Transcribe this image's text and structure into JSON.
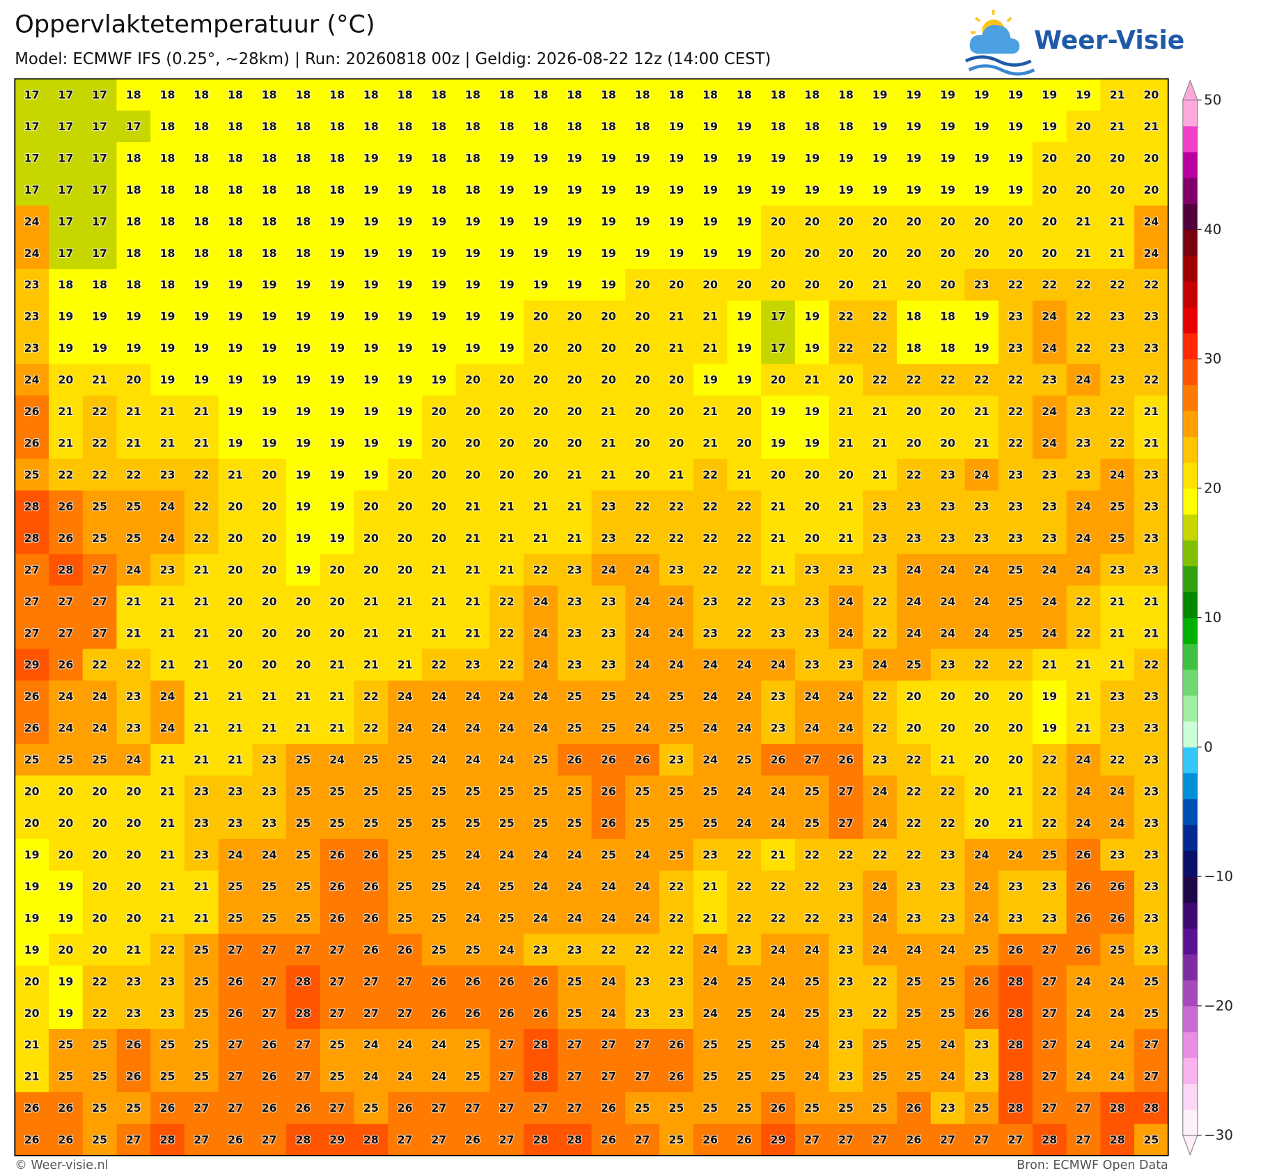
{
  "header": {
    "title": "Oppervlaktetemperatuur (°C)",
    "subtitle": "Model: ECMWF IFS (0.25°, ~28km) | Run: 20260818 00z | Geldig: 2026-08-22 12z (14:00 CEST)",
    "logo": "Weer-Visie"
  },
  "map": {
    "rows": [
      [
        17,
        17,
        17,
        18,
        18,
        18,
        18,
        18,
        18,
        18,
        18,
        18,
        18,
        18,
        18,
        18,
        18,
        18,
        18,
        18,
        18,
        18,
        18,
        18,
        18,
        19,
        19,
        19,
        19,
        19,
        19,
        19,
        21,
        20
      ],
      [
        17,
        17,
        17,
        17,
        18,
        18,
        18,
        18,
        18,
        18,
        18,
        18,
        18,
        18,
        18,
        18,
        18,
        18,
        18,
        19,
        19,
        19,
        18,
        18,
        18,
        19,
        19,
        19,
        19,
        19,
        19,
        20,
        21,
        21
      ],
      [
        17,
        17,
        17,
        18,
        18,
        18,
        18,
        18,
        18,
        18,
        19,
        19,
        18,
        18,
        19,
        19,
        19,
        19,
        19,
        19,
        19,
        19,
        19,
        19,
        19,
        19,
        19,
        19,
        19,
        19,
        20,
        20,
        20,
        20
      ],
      [
        17,
        17,
        17,
        18,
        18,
        18,
        18,
        18,
        18,
        18,
        19,
        19,
        18,
        18,
        19,
        19,
        19,
        19,
        19,
        19,
        19,
        19,
        19,
        19,
        19,
        19,
        19,
        19,
        19,
        19,
        20,
        20,
        20,
        20
      ],
      [
        24,
        17,
        17,
        18,
        18,
        18,
        18,
        18,
        18,
        19,
        19,
        19,
        19,
        19,
        19,
        19,
        19,
        19,
        19,
        19,
        19,
        19,
        20,
        20,
        20,
        20,
        20,
        20,
        20,
        20,
        20,
        21,
        21,
        24
      ],
      [
        24,
        17,
        17,
        18,
        18,
        18,
        18,
        18,
        18,
        19,
        19,
        19,
        19,
        19,
        19,
        19,
        19,
        19,
        19,
        19,
        19,
        19,
        20,
        20,
        20,
        20,
        20,
        20,
        20,
        20,
        20,
        21,
        21,
        24
      ],
      [
        23,
        18,
        18,
        18,
        18,
        19,
        19,
        19,
        19,
        19,
        19,
        19,
        19,
        19,
        19,
        19,
        19,
        19,
        20,
        20,
        20,
        20,
        20,
        20,
        20,
        21,
        20,
        20,
        23,
        22,
        22,
        22,
        22,
        22
      ],
      [
        23,
        19,
        19,
        19,
        19,
        19,
        19,
        19,
        19,
        19,
        19,
        19,
        19,
        19,
        19,
        20,
        20,
        20,
        20,
        21,
        21,
        19,
        17,
        19,
        22,
        22,
        18,
        18,
        19,
        23,
        24,
        22,
        23,
        23
      ],
      [
        23,
        19,
        19,
        19,
        19,
        19,
        19,
        19,
        19,
        19,
        19,
        19,
        19,
        19,
        19,
        20,
        20,
        20,
        20,
        21,
        21,
        19,
        17,
        19,
        22,
        22,
        18,
        18,
        19,
        23,
        24,
        22,
        23,
        23
      ],
      [
        24,
        20,
        21,
        20,
        19,
        19,
        19,
        19,
        19,
        19,
        19,
        19,
        19,
        20,
        20,
        20,
        20,
        20,
        20,
        20,
        19,
        19,
        20,
        21,
        20,
        22,
        22,
        22,
        22,
        22,
        23,
        24,
        23,
        22
      ],
      [
        26,
        21,
        22,
        21,
        21,
        21,
        19,
        19,
        19,
        19,
        19,
        19,
        20,
        20,
        20,
        20,
        20,
        21,
        20,
        20,
        21,
        20,
        19,
        19,
        21,
        21,
        20,
        20,
        21,
        22,
        24,
        23,
        22,
        21
      ],
      [
        26,
        21,
        22,
        21,
        21,
        21,
        19,
        19,
        19,
        19,
        19,
        19,
        20,
        20,
        20,
        20,
        20,
        21,
        20,
        20,
        21,
        20,
        19,
        19,
        21,
        21,
        20,
        20,
        21,
        22,
        24,
        23,
        22,
        21
      ],
      [
        25,
        22,
        22,
        22,
        23,
        22,
        21,
        20,
        19,
        19,
        19,
        20,
        20,
        20,
        20,
        20,
        21,
        21,
        20,
        21,
        22,
        21,
        20,
        20,
        20,
        21,
        22,
        23,
        24,
        23,
        23,
        23,
        24,
        23
      ],
      [
        28,
        26,
        25,
        25,
        24,
        22,
        20,
        20,
        19,
        19,
        20,
        20,
        20,
        21,
        21,
        21,
        21,
        23,
        22,
        22,
        22,
        22,
        21,
        20,
        21,
        23,
        23,
        23,
        23,
        23,
        23,
        24,
        25,
        23
      ],
      [
        28,
        26,
        25,
        25,
        24,
        22,
        20,
        20,
        19,
        19,
        20,
        20,
        20,
        21,
        21,
        21,
        21,
        23,
        22,
        22,
        22,
        22,
        21,
        20,
        21,
        23,
        23,
        23,
        23,
        23,
        23,
        24,
        25,
        23
      ],
      [
        27,
        28,
        27,
        24,
        23,
        21,
        20,
        20,
        19,
        20,
        20,
        20,
        21,
        21,
        21,
        22,
        23,
        24,
        24,
        23,
        22,
        22,
        21,
        23,
        23,
        23,
        24,
        24,
        24,
        25,
        24,
        24,
        23,
        23
      ],
      [
        27,
        27,
        27,
        21,
        21,
        21,
        20,
        20,
        20,
        20,
        21,
        21,
        21,
        21,
        22,
        24,
        23,
        23,
        24,
        24,
        23,
        22,
        23,
        23,
        24,
        22,
        24,
        24,
        24,
        25,
        24,
        22,
        21,
        21
      ],
      [
        27,
        27,
        27,
        21,
        21,
        21,
        20,
        20,
        20,
        20,
        21,
        21,
        21,
        21,
        22,
        24,
        23,
        23,
        24,
        24,
        23,
        22,
        23,
        23,
        24,
        22,
        24,
        24,
        24,
        25,
        24,
        22,
        21,
        21
      ],
      [
        29,
        26,
        22,
        22,
        21,
        21,
        20,
        20,
        20,
        21,
        21,
        21,
        22,
        23,
        22,
        24,
        23,
        23,
        24,
        24,
        24,
        24,
        24,
        23,
        23,
        24,
        25,
        23,
        22,
        22,
        21,
        21,
        21,
        22
      ],
      [
        26,
        24,
        24,
        23,
        24,
        21,
        21,
        21,
        21,
        21,
        22,
        24,
        24,
        24,
        24,
        24,
        25,
        25,
        24,
        25,
        24,
        24,
        23,
        24,
        24,
        22,
        20,
        20,
        20,
        20,
        19,
        21,
        23,
        23
      ],
      [
        26,
        24,
        24,
        23,
        24,
        21,
        21,
        21,
        21,
        21,
        22,
        24,
        24,
        24,
        24,
        24,
        25,
        25,
        24,
        25,
        24,
        24,
        23,
        24,
        24,
        22,
        20,
        20,
        20,
        20,
        19,
        21,
        23,
        23
      ],
      [
        25,
        25,
        25,
        24,
        21,
        21,
        21,
        23,
        25,
        24,
        25,
        25,
        24,
        24,
        24,
        25,
        26,
        26,
        26,
        23,
        24,
        25,
        26,
        27,
        26,
        23,
        22,
        21,
        20,
        20,
        22,
        24,
        22,
        23
      ],
      [
        20,
        20,
        20,
        20,
        21,
        23,
        23,
        23,
        25,
        25,
        25,
        25,
        25,
        25,
        25,
        25,
        25,
        26,
        25,
        25,
        25,
        24,
        24,
        25,
        27,
        24,
        22,
        22,
        20,
        21,
        22,
        24,
        24,
        23
      ],
      [
        20,
        20,
        20,
        20,
        21,
        23,
        23,
        23,
        25,
        25,
        25,
        25,
        25,
        25,
        25,
        25,
        25,
        26,
        25,
        25,
        25,
        24,
        24,
        25,
        27,
        24,
        22,
        22,
        20,
        21,
        22,
        24,
        24,
        23
      ],
      [
        19,
        20,
        20,
        20,
        21,
        23,
        24,
        24,
        25,
        26,
        26,
        25,
        25,
        24,
        24,
        24,
        24,
        25,
        24,
        25,
        23,
        22,
        21,
        22,
        22,
        22,
        22,
        23,
        24,
        24,
        25,
        26,
        23,
        23
      ],
      [
        19,
        19,
        20,
        20,
        21,
        21,
        25,
        25,
        25,
        26,
        26,
        25,
        25,
        24,
        25,
        24,
        24,
        24,
        24,
        22,
        21,
        22,
        22,
        22,
        23,
        24,
        23,
        23,
        24,
        23,
        23,
        26,
        26,
        23
      ],
      [
        19,
        19,
        20,
        20,
        21,
        21,
        25,
        25,
        25,
        26,
        26,
        25,
        25,
        24,
        25,
        24,
        24,
        24,
        24,
        22,
        21,
        22,
        22,
        22,
        23,
        24,
        23,
        23,
        24,
        23,
        23,
        26,
        26,
        23
      ],
      [
        19,
        20,
        20,
        21,
        22,
        25,
        27,
        27,
        27,
        27,
        26,
        26,
        25,
        25,
        24,
        23,
        23,
        22,
        22,
        22,
        24,
        23,
        24,
        24,
        23,
        24,
        24,
        24,
        25,
        26,
        27,
        26,
        25,
        23
      ],
      [
        20,
        19,
        22,
        23,
        23,
        25,
        26,
        27,
        28,
        27,
        27,
        27,
        26,
        26,
        26,
        26,
        25,
        24,
        23,
        23,
        24,
        25,
        24,
        25,
        23,
        22,
        25,
        25,
        26,
        28,
        27,
        24,
        24,
        25
      ],
      [
        20,
        19,
        22,
        23,
        23,
        25,
        26,
        27,
        28,
        27,
        27,
        27,
        26,
        26,
        26,
        26,
        25,
        24,
        23,
        23,
        24,
        25,
        24,
        25,
        23,
        22,
        25,
        25,
        26,
        28,
        27,
        24,
        24,
        25
      ],
      [
        21,
        25,
        25,
        26,
        25,
        25,
        27,
        26,
        27,
        25,
        24,
        24,
        24,
        25,
        27,
        28,
        27,
        27,
        27,
        26,
        25,
        25,
        25,
        24,
        23,
        25,
        25,
        24,
        23,
        28,
        27,
        24,
        24,
        27
      ],
      [
        21,
        25,
        25,
        26,
        25,
        25,
        27,
        26,
        27,
        25,
        24,
        24,
        24,
        25,
        27,
        28,
        27,
        27,
        27,
        26,
        25,
        25,
        25,
        24,
        23,
        25,
        25,
        24,
        23,
        28,
        27,
        24,
        24,
        27
      ],
      [
        26,
        26,
        25,
        25,
        26,
        27,
        27,
        26,
        26,
        27,
        25,
        26,
        27,
        27,
        27,
        27,
        27,
        26,
        25,
        25,
        25,
        25,
        26,
        25,
        25,
        25,
        26,
        23,
        25,
        28,
        27,
        27,
        28,
        28
      ],
      [
        26,
        26,
        25,
        27,
        28,
        27,
        26,
        27,
        28,
        29,
        28,
        27,
        27,
        26,
        27,
        28,
        28,
        26,
        27,
        25,
        26,
        26,
        29,
        27,
        27,
        27,
        26,
        27,
        27,
        27,
        28,
        27,
        28,
        25
      ]
    ]
  },
  "colorbar": {
    "lim": [
      -30,
      50
    ],
    "ticks": [
      {
        "value": -30,
        "label": "−30"
      },
      {
        "value": -20,
        "label": "−20"
      },
      {
        "value": -10,
        "label": "−10"
      },
      0,
      10,
      20,
      30,
      40,
      50
    ],
    "colors": [
      "#fdf0fb",
      "#fcd6f5",
      "#f8b2ee",
      "#e88ee4",
      "#c96ad2",
      "#a64abb",
      "#7e2ca4",
      "#5a1290",
      "#3c0a70",
      "#1e0848",
      "#0a1068",
      "#002a90",
      "#0050b4",
      "#0090d8",
      "#33c6f6",
      "#ccffd8",
      "#a0eea0",
      "#70d870",
      "#40c040",
      "#00b000",
      "#008800",
      "#30a010",
      "#80c000",
      "#c8d600",
      "#ffff00",
      "#ffe000",
      "#ffc400",
      "#ffa000",
      "#ff7a00",
      "#ff5500",
      "#ff2800",
      "#e60000",
      "#c40000",
      "#a00000",
      "#780010",
      "#50003a",
      "#800068",
      "#b8009e",
      "#f040c8",
      "#ffa8dc"
    ]
  },
  "footer": {
    "left": "© Weer-visie.nl",
    "right": "Bron: ECMWF Open Data"
  }
}
